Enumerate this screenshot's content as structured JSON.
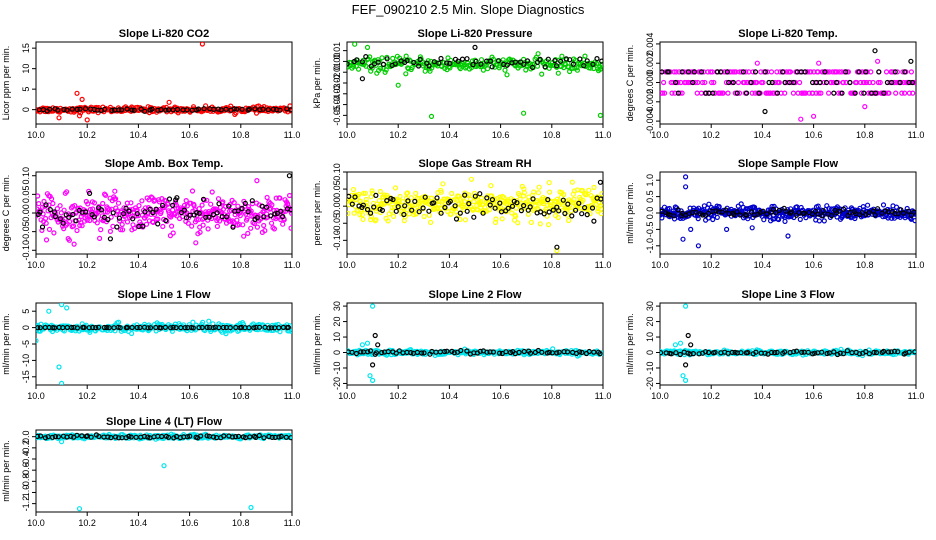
{
  "figure": {
    "title": "FEF_090210  2.5 Min. Slope Diagnostics"
  },
  "chart_data": [
    {
      "type": "scatter",
      "title": "Slope Li-820 CO2",
      "ylabel": "Licor ppm per min.",
      "xlim": [
        10.0,
        11.0
      ],
      "ylim": [
        -3.5,
        16.5
      ],
      "yticks": [
        0,
        5,
        10,
        15
      ],
      "ytick_labels": [
        "0",
        "5",
        "10",
        "15"
      ],
      "xticks": [
        10.0,
        10.2,
        10.4,
        10.6,
        10.8,
        11.0
      ],
      "xtick_labels": [
        "10.0",
        "10.2",
        "10.4",
        "10.6",
        "10.8",
        "11.0"
      ],
      "series": [
        {
          "color": "#ff0000",
          "center": 0,
          "spread": 0.6,
          "density": 300,
          "outliers": [
            [
              10.65,
              16
            ],
            [
              10.16,
              4
            ],
            [
              10.18,
              2.5
            ],
            [
              10.52,
              1.8
            ],
            [
              10.09,
              -2
            ],
            [
              10.2,
              -2.5
            ],
            [
              10.17,
              -1.5
            ]
          ]
        },
        {
          "color": "#000000",
          "center": 0,
          "spread": 0.25,
          "density": 60,
          "outliers": []
        }
      ]
    },
    {
      "type": "scatter",
      "title": "Slope Li-820 Pressure",
      "ylabel": "kPa per min.",
      "xlim": [
        10.0,
        11.0
      ],
      "ylim": [
        -0.058,
        0.018
      ],
      "yticks": [
        -0.05,
        -0.04,
        -0.03,
        -0.02,
        -0.01,
        0.0,
        0.01
      ],
      "ytick_labels": [
        "-0.05",
        "-0.04",
        "-0.03",
        "-0.02",
        "-0.01",
        "0.00",
        "0.01"
      ],
      "xticks": [
        10.0,
        10.2,
        10.4,
        10.6,
        10.8,
        11.0
      ],
      "xtick_labels": [
        "10.0",
        "10.2",
        "10.4",
        "10.6",
        "10.8",
        "11.0"
      ],
      "series": [
        {
          "color": "#00cc00",
          "center": -0.003,
          "spread": 0.006,
          "density": 260,
          "outliers": [
            [
              10.33,
              -0.051
            ],
            [
              10.69,
              -0.048
            ],
            [
              10.99,
              -0.05
            ],
            [
              10.08,
              0.013
            ],
            [
              10.2,
              -0.022
            ],
            [
              10.03,
              0.016
            ]
          ]
        },
        {
          "color": "#000000",
          "center": -0.001,
          "spread": 0.004,
          "density": 60,
          "outliers": [
            [
              10.06,
              -0.016
            ],
            [
              10.5,
              0.013
            ]
          ]
        }
      ]
    },
    {
      "type": "scatter",
      "title": "Slope Li-820 Temp.",
      "ylabel": "degrees C per min.",
      "xlim": [
        10.0,
        11.0
      ],
      "ylim": [
        -0.0043,
        0.0042
      ],
      "yticks": [
        -0.004,
        -0.002,
        0.0,
        0.002,
        0.004
      ],
      "ytick_labels": [
        "-0.004",
        "-0.002",
        "0.000",
        "0.002",
        "0.004"
      ],
      "xticks": [
        10.0,
        10.2,
        10.4,
        10.6,
        10.8,
        11.0
      ],
      "xtick_labels": [
        "10.0",
        "10.2",
        "10.4",
        "10.6",
        "10.8",
        "11.0"
      ],
      "series": [
        {
          "color": "#ff00ff",
          "levels": [
            -0.0011,
            0.0,
            0.0011
          ],
          "center": 0,
          "spread": 0.001,
          "density": 260,
          "outliers": [
            [
              10.6,
              -0.0035
            ],
            [
              10.55,
              -0.0038
            ],
            [
              10.62,
              0.002
            ],
            [
              10.8,
              -0.0025
            ],
            [
              10.38,
              0.002
            ],
            [
              10.85,
              0.0022
            ]
          ]
        },
        {
          "color": "#000000",
          "levels": [
            -0.0011,
            0.0,
            0.0011
          ],
          "center": 0,
          "spread": 0.0008,
          "density": 60,
          "outliers": [
            [
              10.84,
              0.0033
            ],
            [
              10.41,
              -0.003
            ],
            [
              10.98,
              0.0022
            ]
          ]
        }
      ]
    },
    {
      "type": "scatter",
      "title": "Slope Amb. Box Temp.",
      "ylabel": "degrees C per min.",
      "xlim": [
        10.0,
        11.0
      ],
      "ylim": [
        -0.11,
        0.11
      ],
      "yticks": [
        -0.1,
        -0.05,
        0.0,
        0.05,
        0.1
      ],
      "ytick_labels": [
        "-0.10",
        "-0.05",
        "0.00",
        "0.05",
        "0.10"
      ],
      "xticks": [
        10.0,
        10.2,
        10.4,
        10.6,
        10.8,
        11.0
      ],
      "xtick_labels": [
        "10.0",
        "10.2",
        "10.4",
        "10.6",
        "10.8",
        "11.0"
      ],
      "series": [
        {
          "color": "#ff00ff",
          "center": 0,
          "spread": 0.045,
          "density": 420,
          "outliers": []
        },
        {
          "color": "#000000",
          "center": 0,
          "spread": 0.04,
          "density": 80,
          "outliers": [
            [
              10.99,
              0.1
            ]
          ]
        }
      ]
    },
    {
      "type": "scatter",
      "title": "Slope Gas Stream RH",
      "ylabel": "percent per min.",
      "xlim": [
        10.0,
        11.0
      ],
      "ylim": [
        -0.14,
        0.1
      ],
      "yticks": [
        -0.1,
        -0.05,
        0.0,
        0.05,
        0.1
      ],
      "ytick_labels": [
        "-0.10",
        "-0.05",
        "0.00",
        "0.05",
        "0.10"
      ],
      "xticks": [
        10.0,
        10.2,
        10.4,
        10.6,
        10.8,
        11.0
      ],
      "xtick_labels": [
        "10.0",
        "10.2",
        "10.4",
        "10.6",
        "10.8",
        "11.0"
      ],
      "series": [
        {
          "color": "#ffff00",
          "center": 0.005,
          "spread": 0.04,
          "density": 420,
          "outliers": [
            [
              10.82,
              -0.13
            ]
          ]
        },
        {
          "color": "#000000",
          "center": 0,
          "spread": 0.03,
          "density": 80,
          "outliers": [
            [
              10.82,
              -0.12
            ],
            [
              10.99,
              0.07
            ]
          ]
        }
      ]
    },
    {
      "type": "scatter",
      "title": "Slope Sample Flow",
      "ylabel": "ml/min per min.",
      "xlim": [
        10.0,
        11.0
      ],
      "ylim": [
        -1.25,
        1.25
      ],
      "yticks": [
        -1.0,
        -0.5,
        0.0,
        0.5,
        1.0
      ],
      "ytick_labels": [
        "-1.0",
        "-0.5",
        "0.0",
        "0.5",
        "1.0"
      ],
      "xticks": [
        10.0,
        10.2,
        10.4,
        10.6,
        10.8,
        11.0
      ],
      "xtick_labels": [
        "10.0",
        "10.2",
        "10.4",
        "10.6",
        "10.8",
        "11.0"
      ],
      "series": [
        {
          "color": "#0000cc",
          "center": 0,
          "spread": 0.18,
          "density": 420,
          "outliers": [
            [
              10.1,
              1.1
            ],
            [
              10.1,
              0.8
            ],
            [
              10.09,
              -0.8
            ],
            [
              10.15,
              -1.0
            ],
            [
              10.12,
              -0.5
            ],
            [
              10.26,
              -0.5
            ],
            [
              10.5,
              -0.7
            ],
            [
              10.36,
              -0.45
            ]
          ]
        },
        {
          "color": "#000000",
          "center": 0,
          "spread": 0.1,
          "density": 80,
          "outliers": []
        }
      ]
    },
    {
      "type": "scatter",
      "title": "Slope Line 1 Flow",
      "ylabel": "ml/min per min.",
      "xlim": [
        10.0,
        11.0
      ],
      "ylim": [
        -17.5,
        7.5
      ],
      "yticks": [
        -15,
        -10,
        -5,
        0,
        5
      ],
      "ytick_labels": [
        "-15",
        "-10",
        "-5",
        "0",
        "5"
      ],
      "xticks": [
        10.0,
        10.2,
        10.4,
        10.6,
        10.8,
        11.0
      ],
      "xtick_labels": [
        "10.0",
        "10.2",
        "10.4",
        "10.6",
        "10.8",
        "11.0"
      ],
      "series": [
        {
          "color": "#00e5ee",
          "center": 0,
          "spread": 1.2,
          "density": 320,
          "outliers": [
            [
              10.1,
              -17
            ],
            [
              10.09,
              -12
            ],
            [
              10.1,
              7
            ],
            [
              10.12,
              6
            ],
            [
              10.05,
              5
            ],
            [
              10.0,
              -4
            ]
          ]
        },
        {
          "color": "#000000",
          "center": 0,
          "spread": 0.1,
          "density": 70,
          "outliers": []
        }
      ]
    },
    {
      "type": "scatter",
      "title": "Slope Line 2 Flow",
      "ylabel": "ml/min per min.",
      "xlim": [
        10.0,
        11.0
      ],
      "ylim": [
        -21,
        32
      ],
      "yticks": [
        -20,
        -10,
        0,
        10,
        20,
        30
      ],
      "ytick_labels": [
        "-20",
        "-10",
        "0",
        "10",
        "20",
        "30"
      ],
      "xticks": [
        10.0,
        10.2,
        10.4,
        10.6,
        10.8,
        11.0
      ],
      "xtick_labels": [
        "10.0",
        "10.2",
        "10.4",
        "10.6",
        "10.8",
        "11.0"
      ],
      "series": [
        {
          "color": "#00e5ee",
          "center": 0,
          "spread": 1.2,
          "density": 320,
          "outliers": [
            [
              10.1,
              30
            ],
            [
              10.1,
              -18
            ],
            [
              10.09,
              -15
            ],
            [
              10.08,
              6
            ],
            [
              10.06,
              5
            ]
          ]
        },
        {
          "color": "#000000",
          "center": 0,
          "spread": 1.0,
          "density": 70,
          "outliers": [
            [
              10.11,
              11
            ],
            [
              10.1,
              -8
            ],
            [
              10.12,
              5
            ]
          ]
        }
      ]
    },
    {
      "type": "scatter",
      "title": "Slope Line 3 Flow",
      "ylabel": "ml/min per min.",
      "xlim": [
        10.0,
        11.0
      ],
      "ylim": [
        -21,
        32
      ],
      "yticks": [
        -20,
        -10,
        0,
        10,
        20,
        30
      ],
      "ytick_labels": [
        "-20",
        "-10",
        "0",
        "10",
        "20",
        "30"
      ],
      "xticks": [
        10.0,
        10.2,
        10.4,
        10.6,
        10.8,
        11.0
      ],
      "xtick_labels": [
        "10.0",
        "10.2",
        "10.4",
        "10.6",
        "10.8",
        "11.0"
      ],
      "series": [
        {
          "color": "#00e5ee",
          "center": 0,
          "spread": 1.2,
          "density": 320,
          "outliers": [
            [
              10.1,
              30
            ],
            [
              10.1,
              -18
            ],
            [
              10.09,
              -15
            ],
            [
              10.08,
              6
            ],
            [
              10.06,
              5
            ]
          ]
        },
        {
          "color": "#000000",
          "center": 0,
          "spread": 1.0,
          "density": 70,
          "outliers": [
            [
              10.11,
              11
            ],
            [
              10.1,
              -8
            ],
            [
              10.12,
              5
            ]
          ]
        }
      ]
    },
    {
      "type": "scatter",
      "title": "Slope Line 4 (LT) Flow",
      "ylabel": "ml/min per min.",
      "xlim": [
        10.0,
        11.0
      ],
      "ylim": [
        -1.35,
        0.12
      ],
      "yticks": [
        -1.2,
        -1.0,
        -0.8,
        -0.6,
        -0.4,
        -0.2,
        0.0
      ],
      "ytick_labels": [
        "-1.2",
        "-1.0",
        "-0.8",
        "-0.6",
        "-0.4",
        "-0.2",
        "0.0"
      ],
      "xticks": [
        10.0,
        10.2,
        10.4,
        10.6,
        10.8,
        11.0
      ],
      "xtick_labels": [
        "10.0",
        "10.2",
        "10.4",
        "10.6",
        "10.8",
        "11.0"
      ],
      "series": [
        {
          "color": "#00e5ee",
          "center": 0,
          "spread": 0.03,
          "density": 320,
          "outliers": [
            [
              10.17,
              -1.29
            ],
            [
              10.84,
              -1.27
            ],
            [
              10.5,
              -0.52
            ],
            [
              10.1,
              -0.09
            ]
          ]
        },
        {
          "color": "#000000",
          "center": 0,
          "spread": 0.02,
          "density": 70,
          "outliers": []
        }
      ]
    }
  ]
}
